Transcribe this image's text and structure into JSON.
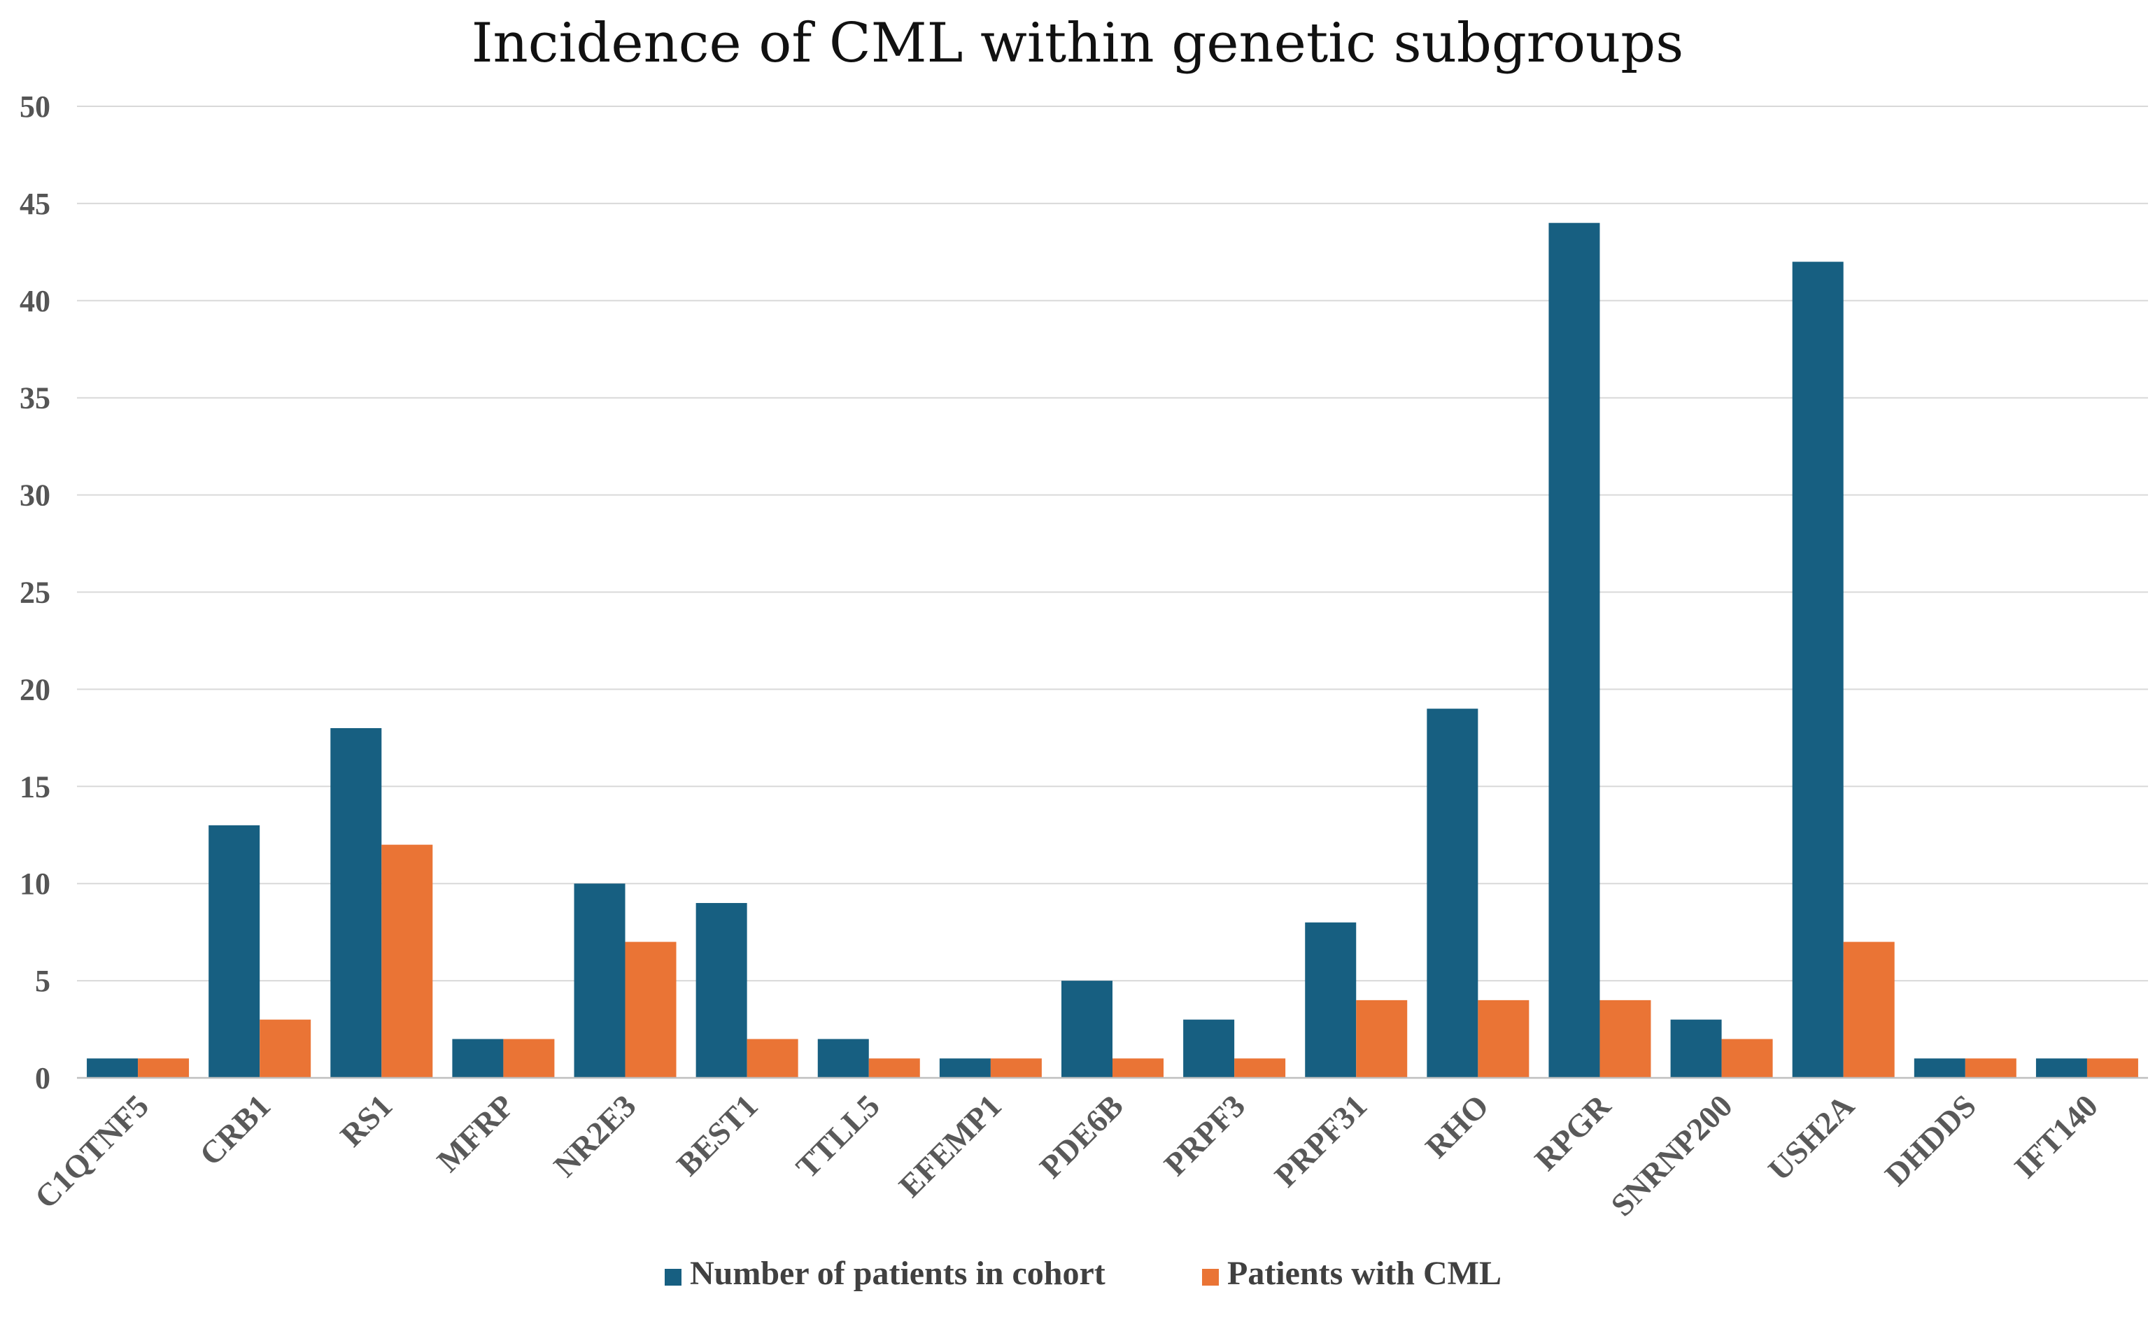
{
  "chart_data": {
    "type": "bar",
    "title": "Incidence of CML within genetic subgroups",
    "xlabel": "",
    "ylabel": "",
    "ylim": [
      0,
      50
    ],
    "yticks": [
      "0",
      "5",
      "10",
      "15",
      "20",
      "25",
      "30",
      "35",
      "40",
      "45",
      "50"
    ],
    "grid": true,
    "legend_position": "bottom",
    "categories": [
      "C1QTNF5",
      "CRB1",
      "RS1",
      "MFRP",
      "NR2E3",
      "BEST1",
      "TTLL5",
      "EFEMP1",
      "PDE6B",
      "PRPF3",
      "PRPF31",
      "RHO",
      "RPGR",
      "SNRNP200",
      "USH2A",
      "DHDDS",
      "IFT140"
    ],
    "series": [
      {
        "name": "Number of patients in cohort",
        "color": "#175f81",
        "values": [
          1,
          13,
          18,
          2,
          10,
          9,
          2,
          1,
          5,
          3,
          8,
          19,
          44,
          3,
          42,
          1,
          1
        ]
      },
      {
        "name": "Patients with CML",
        "color": "#ea7435",
        "values": [
          1,
          3,
          12,
          2,
          7,
          2,
          1,
          1,
          1,
          1,
          4,
          4,
          4,
          2,
          7,
          1,
          1
        ]
      }
    ]
  }
}
